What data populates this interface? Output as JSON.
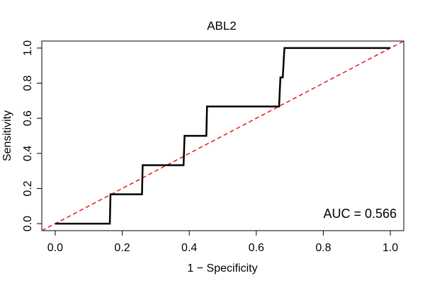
{
  "chart_data": {
    "type": "line",
    "title": "ABL2",
    "xlabel": "1 − Specificity",
    "ylabel": "Sensitivity",
    "xlim": [
      -0.04,
      1.04
    ],
    "ylim": [
      -0.04,
      1.04
    ],
    "x_ticks": [
      "0.0",
      "0.2",
      "0.4",
      "0.6",
      "0.8",
      "1.0"
    ],
    "y_ticks": [
      "0.0",
      "0.2",
      "0.4",
      "0.6",
      "0.8",
      "1.0"
    ],
    "annotation": "AUC = 0.566",
    "series": [
      {
        "style": "step-curve",
        "color": "#000000",
        "x": [
          0.0,
          0.163,
          0.165,
          0.259,
          0.261,
          0.383,
          0.386,
          0.451,
          0.453,
          0.668,
          0.672,
          0.679,
          0.684,
          1.0
        ],
        "y": [
          0.0,
          0.0,
          0.167,
          0.167,
          0.333,
          0.333,
          0.5,
          0.5,
          0.667,
          0.667,
          0.833,
          0.833,
          1.0,
          1.0
        ]
      },
      {
        "style": "reference-diagonal",
        "color": "#e31a1c",
        "x": [
          -0.04,
          1.04
        ],
        "y": [
          -0.04,
          1.04
        ]
      }
    ]
  }
}
